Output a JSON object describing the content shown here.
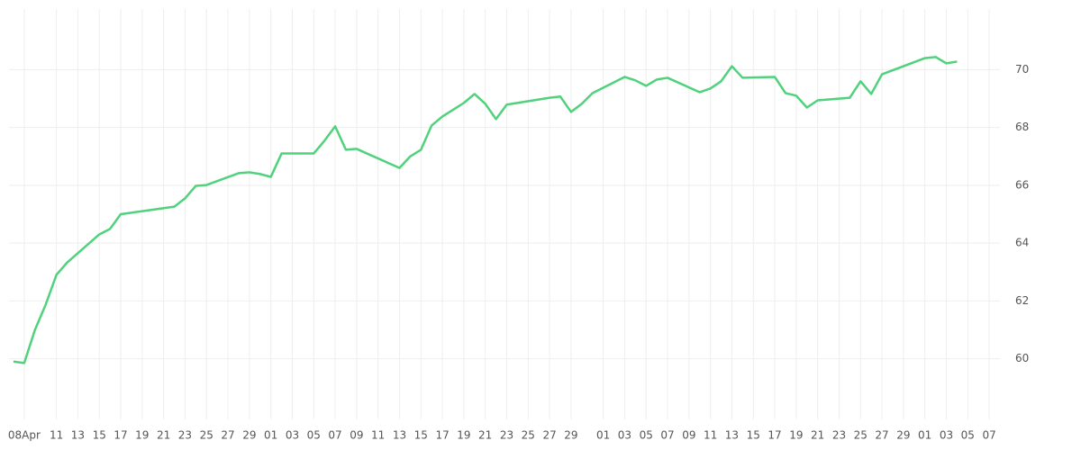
{
  "chart_data": {
    "type": "line",
    "x": [
      "04-07",
      "04-08",
      "04-09",
      "04-10",
      "04-11",
      "04-12",
      "04-15",
      "04-16",
      "04-17",
      "04-22",
      "04-23",
      "04-24",
      "04-25",
      "04-28",
      "04-29",
      "04-30",
      "05-01",
      "05-02",
      "05-05",
      "05-06",
      "05-07",
      "05-08",
      "05-09",
      "05-13",
      "05-14",
      "05-15",
      "05-16",
      "05-17",
      "05-19",
      "05-20",
      "05-21",
      "05-22",
      "05-23",
      "05-27",
      "05-28",
      "05-29",
      "05-30",
      "05-31",
      "06-03",
      "06-04",
      "06-05",
      "06-06",
      "06-07",
      "06-10",
      "06-11",
      "06-12",
      "06-13",
      "06-14",
      "06-17",
      "06-18",
      "06-19",
      "06-20",
      "06-21",
      "06-24",
      "06-25",
      "06-26",
      "06-27",
      "07-01",
      "07-02",
      "07-03",
      "07-04"
    ],
    "series": [
      {
        "color": "#50d27c",
        "values": [
          59.9,
          59.85,
          61.0,
          61.87,
          62.9,
          63.33,
          64.3,
          64.49,
          65.0,
          65.26,
          65.55,
          65.98,
          66.01,
          66.42,
          66.45,
          66.39,
          66.29,
          67.1,
          67.1,
          67.54,
          68.04,
          67.23,
          67.26,
          66.6,
          67.0,
          67.23,
          68.07,
          68.38,
          68.85,
          69.16,
          68.82,
          68.29,
          68.79,
          69.03,
          69.07,
          68.54,
          68.82,
          69.19,
          69.75,
          69.63,
          69.44,
          69.66,
          69.72,
          69.22,
          69.35,
          69.6,
          70.12,
          69.72,
          69.75,
          69.19,
          69.1,
          68.69,
          68.94,
          69.03,
          69.6,
          69.16,
          69.84,
          70.4,
          70.44,
          70.22,
          70.28
        ]
      }
    ],
    "xlim": [
      "04-07",
      "07-08"
    ],
    "xticks": [
      {
        "value": "04-08",
        "label": "08Apr"
      },
      {
        "value": "04-11",
        "label": "11"
      },
      {
        "value": "04-13",
        "label": "13"
      },
      {
        "value": "04-15",
        "label": "15"
      },
      {
        "value": "04-17",
        "label": "17"
      },
      {
        "value": "04-19",
        "label": "19"
      },
      {
        "value": "04-21",
        "label": "21"
      },
      {
        "value": "04-23",
        "label": "23"
      },
      {
        "value": "04-25",
        "label": "25"
      },
      {
        "value": "04-27",
        "label": "27"
      },
      {
        "value": "04-29",
        "label": "29"
      },
      {
        "value": "05-01",
        "label": "01"
      },
      {
        "value": "05-03",
        "label": "03"
      },
      {
        "value": "05-05",
        "label": "05"
      },
      {
        "value": "05-07",
        "label": "07"
      },
      {
        "value": "05-09",
        "label": "09"
      },
      {
        "value": "05-11",
        "label": "11"
      },
      {
        "value": "05-13",
        "label": "13"
      },
      {
        "value": "05-15",
        "label": "15"
      },
      {
        "value": "05-17",
        "label": "17"
      },
      {
        "value": "05-19",
        "label": "19"
      },
      {
        "value": "05-21",
        "label": "21"
      },
      {
        "value": "05-23",
        "label": "23"
      },
      {
        "value": "05-25",
        "label": "25"
      },
      {
        "value": "05-27",
        "label": "27"
      },
      {
        "value": "05-29",
        "label": "29"
      },
      {
        "value": "06-01",
        "label": "01"
      },
      {
        "value": "06-03",
        "label": "03"
      },
      {
        "value": "06-05",
        "label": "05"
      },
      {
        "value": "06-07",
        "label": "07"
      },
      {
        "value": "06-09",
        "label": "09"
      },
      {
        "value": "06-11",
        "label": "11"
      },
      {
        "value": "06-13",
        "label": "13"
      },
      {
        "value": "06-15",
        "label": "15"
      },
      {
        "value": "06-17",
        "label": "17"
      },
      {
        "value": "06-19",
        "label": "19"
      },
      {
        "value": "06-21",
        "label": "21"
      },
      {
        "value": "06-23",
        "label": "23"
      },
      {
        "value": "06-25",
        "label": "25"
      },
      {
        "value": "06-27",
        "label": "27"
      },
      {
        "value": "06-29",
        "label": "29"
      },
      {
        "value": "07-01",
        "label": "01"
      },
      {
        "value": "07-03",
        "label": "03"
      },
      {
        "value": "07-05",
        "label": "05"
      },
      {
        "value": "07-07",
        "label": "07"
      }
    ],
    "ylim": [
      57.9,
      72.1
    ],
    "yticks": [
      60,
      62,
      64,
      66,
      68,
      70
    ],
    "grid": true
  }
}
